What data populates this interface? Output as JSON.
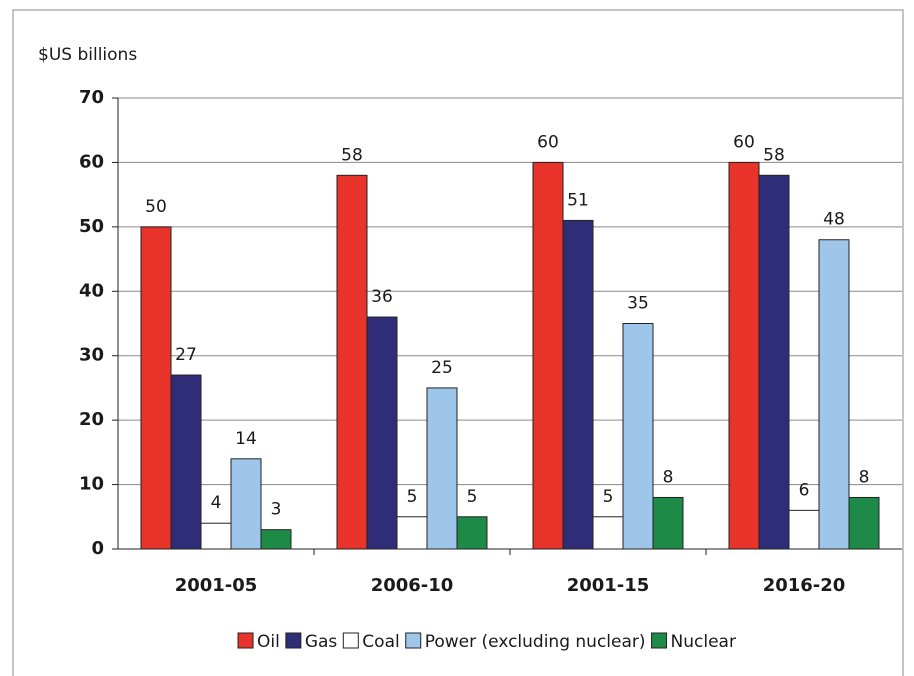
{
  "chart_data": {
    "type": "bar",
    "y_label": "$US billions",
    "categories": [
      "2001-05",
      "2006-10",
      "2001-15",
      "2016-20"
    ],
    "series": [
      {
        "name": "Oil",
        "color": "#e8332a",
        "values": [
          50,
          58,
          60,
          60
        ]
      },
      {
        "name": "Gas",
        "color": "#2f2d78",
        "values": [
          27,
          36,
          51,
          58
        ]
      },
      {
        "name": "Coal",
        "color": "#ffffff",
        "values": [
          4,
          5,
          5,
          6
        ]
      },
      {
        "name": "Power (excluding nuclear)",
        "color": "#9ec6ea",
        "values": [
          14,
          25,
          35,
          48
        ]
      },
      {
        "name": "Nuclear",
        "color": "#1d8a47",
        "values": [
          3,
          5,
          8,
          8
        ]
      }
    ],
    "ylim": [
      0,
      70
    ],
    "yticks": [
      0,
      10,
      20,
      30,
      40,
      50,
      60,
      70
    ],
    "grid": true,
    "legend": "bottom"
  }
}
